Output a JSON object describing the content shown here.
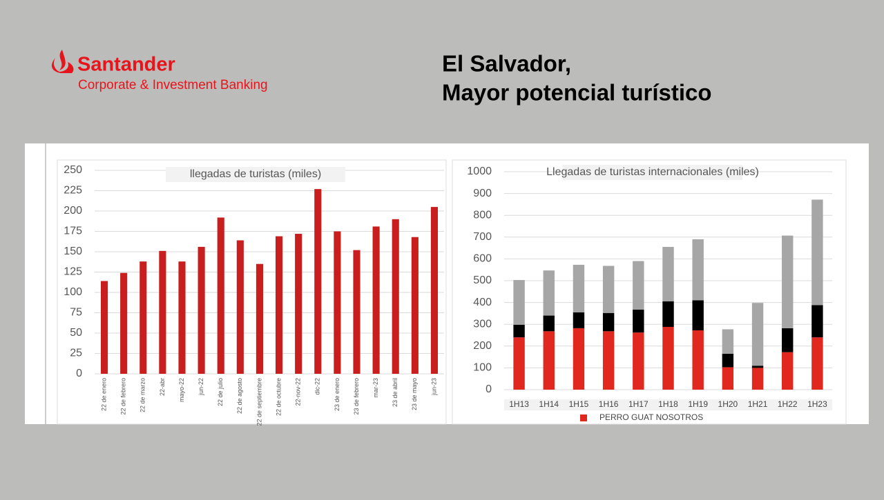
{
  "header": {
    "brand": "Santander",
    "division": "Corporate & Investment Banking",
    "title_line1": "El Salvador,",
    "title_line2": "Mayor potencial turístico"
  },
  "chart_data": [
    {
      "type": "bar",
      "title": "llegadas de turistas (miles)",
      "color": "#c81e1e",
      "categories": [
        "22 de enero",
        "22 de febrero",
        "22 de marzo",
        "22-abr",
        "mayo-22",
        "jun-22",
        "22 de julio",
        "22 de agosto",
        "22 de septiembre",
        "22 de octubre",
        "22-nov-22",
        "dic-22",
        "23 de enero",
        "23 de febrero",
        "mar-23",
        "23 de abril",
        "23 de mayo",
        "jun-23"
      ],
      "values": [
        114,
        124,
        138,
        151,
        138,
        156,
        192,
        164,
        135,
        169,
        172,
        227,
        175,
        152,
        181,
        190,
        168,
        205
      ],
      "ylim": [
        0,
        250
      ],
      "yticks": [
        0,
        25,
        50,
        75,
        100,
        125,
        150,
        175,
        200,
        225,
        250
      ],
      "grid": true
    },
    {
      "type": "stacked_bar",
      "title": "Llegadas de turistas internacionales (miles)",
      "categories": [
        "1H13",
        "1H14",
        "1H15",
        "1H16",
        "1H17",
        "1H18",
        "1H19",
        "1H20",
        "1H21",
        "1H22",
        "1H23"
      ],
      "series": [
        {
          "name": "PERRO GUAT NOSOTROS",
          "color": "#e0281e",
          "values": [
            240,
            268,
            282,
            268,
            262,
            288,
            272,
            103,
            100,
            172,
            240
          ]
        },
        {
          "color": "#000000",
          "values": [
            58,
            72,
            73,
            84,
            105,
            117,
            138,
            62,
            10,
            110,
            148
          ]
        },
        {
          "color": "#a6a6a6",
          "values": [
            205,
            207,
            218,
            216,
            223,
            250,
            280,
            112,
            288,
            425,
            484
          ]
        }
      ],
      "ylim": [
        0,
        1000
      ],
      "yticks": [
        0,
        100,
        200,
        300,
        400,
        500,
        600,
        700,
        800,
        900,
        1000
      ],
      "grid": true
    }
  ]
}
